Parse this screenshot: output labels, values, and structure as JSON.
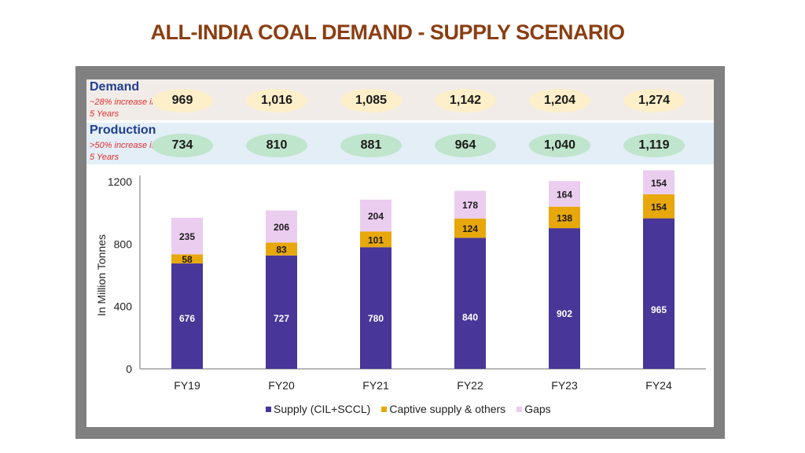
{
  "title": "ALL-INDIA COAL DEMAND - SUPPLY SCENARIO",
  "demand": {
    "label": "Demand",
    "note": "~28% increase in 5 Years",
    "values": [
      "969",
      "1,016",
      "1,085",
      "1,142",
      "1,204",
      "1,274"
    ]
  },
  "production": {
    "label": "Production",
    "note": ">50% increase in 5 Years",
    "values": [
      "734",
      "810",
      "881",
      "964",
      "1,040",
      "1,119"
    ]
  },
  "colors": {
    "supply": "#483698",
    "captive": "#E8A80C",
    "gaps": "#EBCDF0",
    "title": "#8B3E12"
  },
  "chart_data": {
    "type": "bar",
    "stacked": true,
    "title": "ALL-INDIA COAL DEMAND - SUPPLY SCENARIO",
    "xlabel": "",
    "ylabel": "In Million Tonnes",
    "ylim": [
      0,
      1200
    ],
    "yticks": [
      0,
      400,
      800,
      1200
    ],
    "grid": false,
    "legend_position": "bottom",
    "categories": [
      "FY19",
      "FY20",
      "FY21",
      "FY22",
      "FY23",
      "FY24"
    ],
    "series": [
      {
        "name": "Supply (CIL+SCCL)",
        "values": [
          676,
          727,
          780,
          840,
          902,
          965
        ]
      },
      {
        "name": "Captive supply & others",
        "values": [
          58,
          83,
          101,
          124,
          138,
          154
        ]
      },
      {
        "name": "Gaps",
        "values": [
          235,
          206,
          204,
          178,
          164,
          154
        ]
      }
    ]
  }
}
